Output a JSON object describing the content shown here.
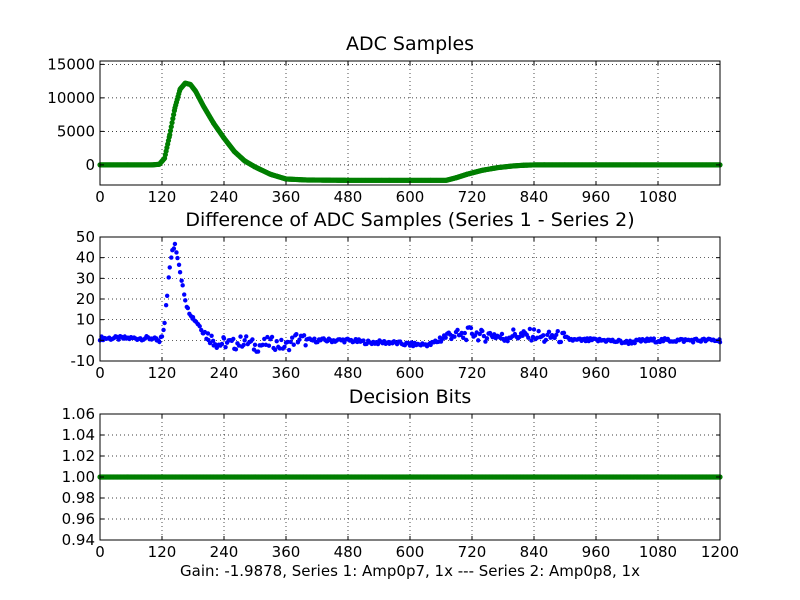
{
  "figure": {
    "caption": "Gain: -1.9878, Series 1: Amp0p7, 1x --- Series 2: Amp0p8, 1x"
  },
  "chart_data": [
    {
      "type": "scatter",
      "title": "ADC Samples",
      "xlim": [
        0,
        1200
      ],
      "ylim": [
        -3000,
        15500
      ],
      "x_ticks": [
        0,
        120,
        240,
        360,
        480,
        600,
        720,
        840,
        960,
        1080
      ],
      "y_ticks": [
        0,
        5000,
        10000,
        15000
      ],
      "grid": true,
      "marker_color": "#007f00",
      "series": [
        {
          "x": [
            0,
            100,
            115,
            125,
            135,
            145,
            155,
            165,
            175,
            185,
            200,
            220,
            240,
            260,
            280,
            300,
            330,
            360,
            400,
            480,
            560,
            640,
            670,
            690,
            710,
            740,
            770,
            800,
            820,
            840,
            860,
            900,
            960,
            1080,
            1200
          ],
          "values": [
            0,
            0,
            100,
            1000,
            4500,
            8500,
            11300,
            12200,
            12000,
            11000,
            8800,
            6200,
            4000,
            2000,
            600,
            -300,
            -1400,
            -2100,
            -2250,
            -2300,
            -2300,
            -2300,
            -2300,
            -1900,
            -1400,
            -800,
            -400,
            -150,
            -50,
            0,
            0,
            0,
            0,
            0,
            0
          ]
        }
      ]
    },
    {
      "type": "scatter",
      "title": "Difference of ADC Samples (Series 1 - Series 2)",
      "xlim": [
        0,
        1200
      ],
      "ylim": [
        -10,
        50
      ],
      "x_ticks": [
        0,
        120,
        240,
        360,
        480,
        600,
        720,
        840,
        960,
        1080
      ],
      "y_ticks": [
        -10,
        0,
        10,
        20,
        30,
        40,
        50
      ],
      "grid": true,
      "marker_color": "#0000ff",
      "series": [
        {
          "x": [
            0,
            100,
            110,
            115,
            120,
            125,
            130,
            135,
            140,
            145,
            150,
            155,
            160,
            165,
            170,
            180,
            190,
            200,
            210,
            220,
            230,
            240,
            260,
            280,
            300,
            330,
            360,
            380,
            400,
            440,
            480,
            520,
            560,
            600,
            640,
            660,
            680,
            700,
            720,
            740,
            760,
            780,
            800,
            820,
            840,
            860,
            880,
            900,
            920,
            940,
            980,
            1020,
            1060,
            1100,
            1200
          ],
          "values": [
            1,
            1,
            0,
            -1,
            2,
            8,
            22,
            36,
            44,
            46,
            40,
            33,
            27,
            20,
            15,
            11,
            8,
            4,
            2,
            0,
            -2,
            -1,
            -2,
            0,
            -3,
            -1,
            -3,
            1,
            0,
            0,
            0,
            -1,
            -1,
            -2,
            -2,
            1,
            3,
            2,
            4,
            2,
            3,
            1,
            3,
            2,
            3,
            1,
            2,
            1,
            0,
            0,
            0,
            -1,
            0,
            0,
            0
          ]
        }
      ]
    },
    {
      "type": "scatter",
      "title": "Decision Bits",
      "xlim": [
        0,
        1200
      ],
      "ylim": [
        0.94,
        1.06
      ],
      "x_ticks": [
        0,
        120,
        240,
        360,
        480,
        600,
        720,
        840,
        960,
        1080,
        1200
      ],
      "y_ticks": [
        0.94,
        0.96,
        0.98,
        1.0,
        1.02,
        1.04,
        1.06
      ],
      "grid": true,
      "marker_color": "#007f00",
      "series": [
        {
          "x": [
            0,
            1200
          ],
          "values": [
            1.0,
            1.0
          ]
        }
      ]
    }
  ]
}
